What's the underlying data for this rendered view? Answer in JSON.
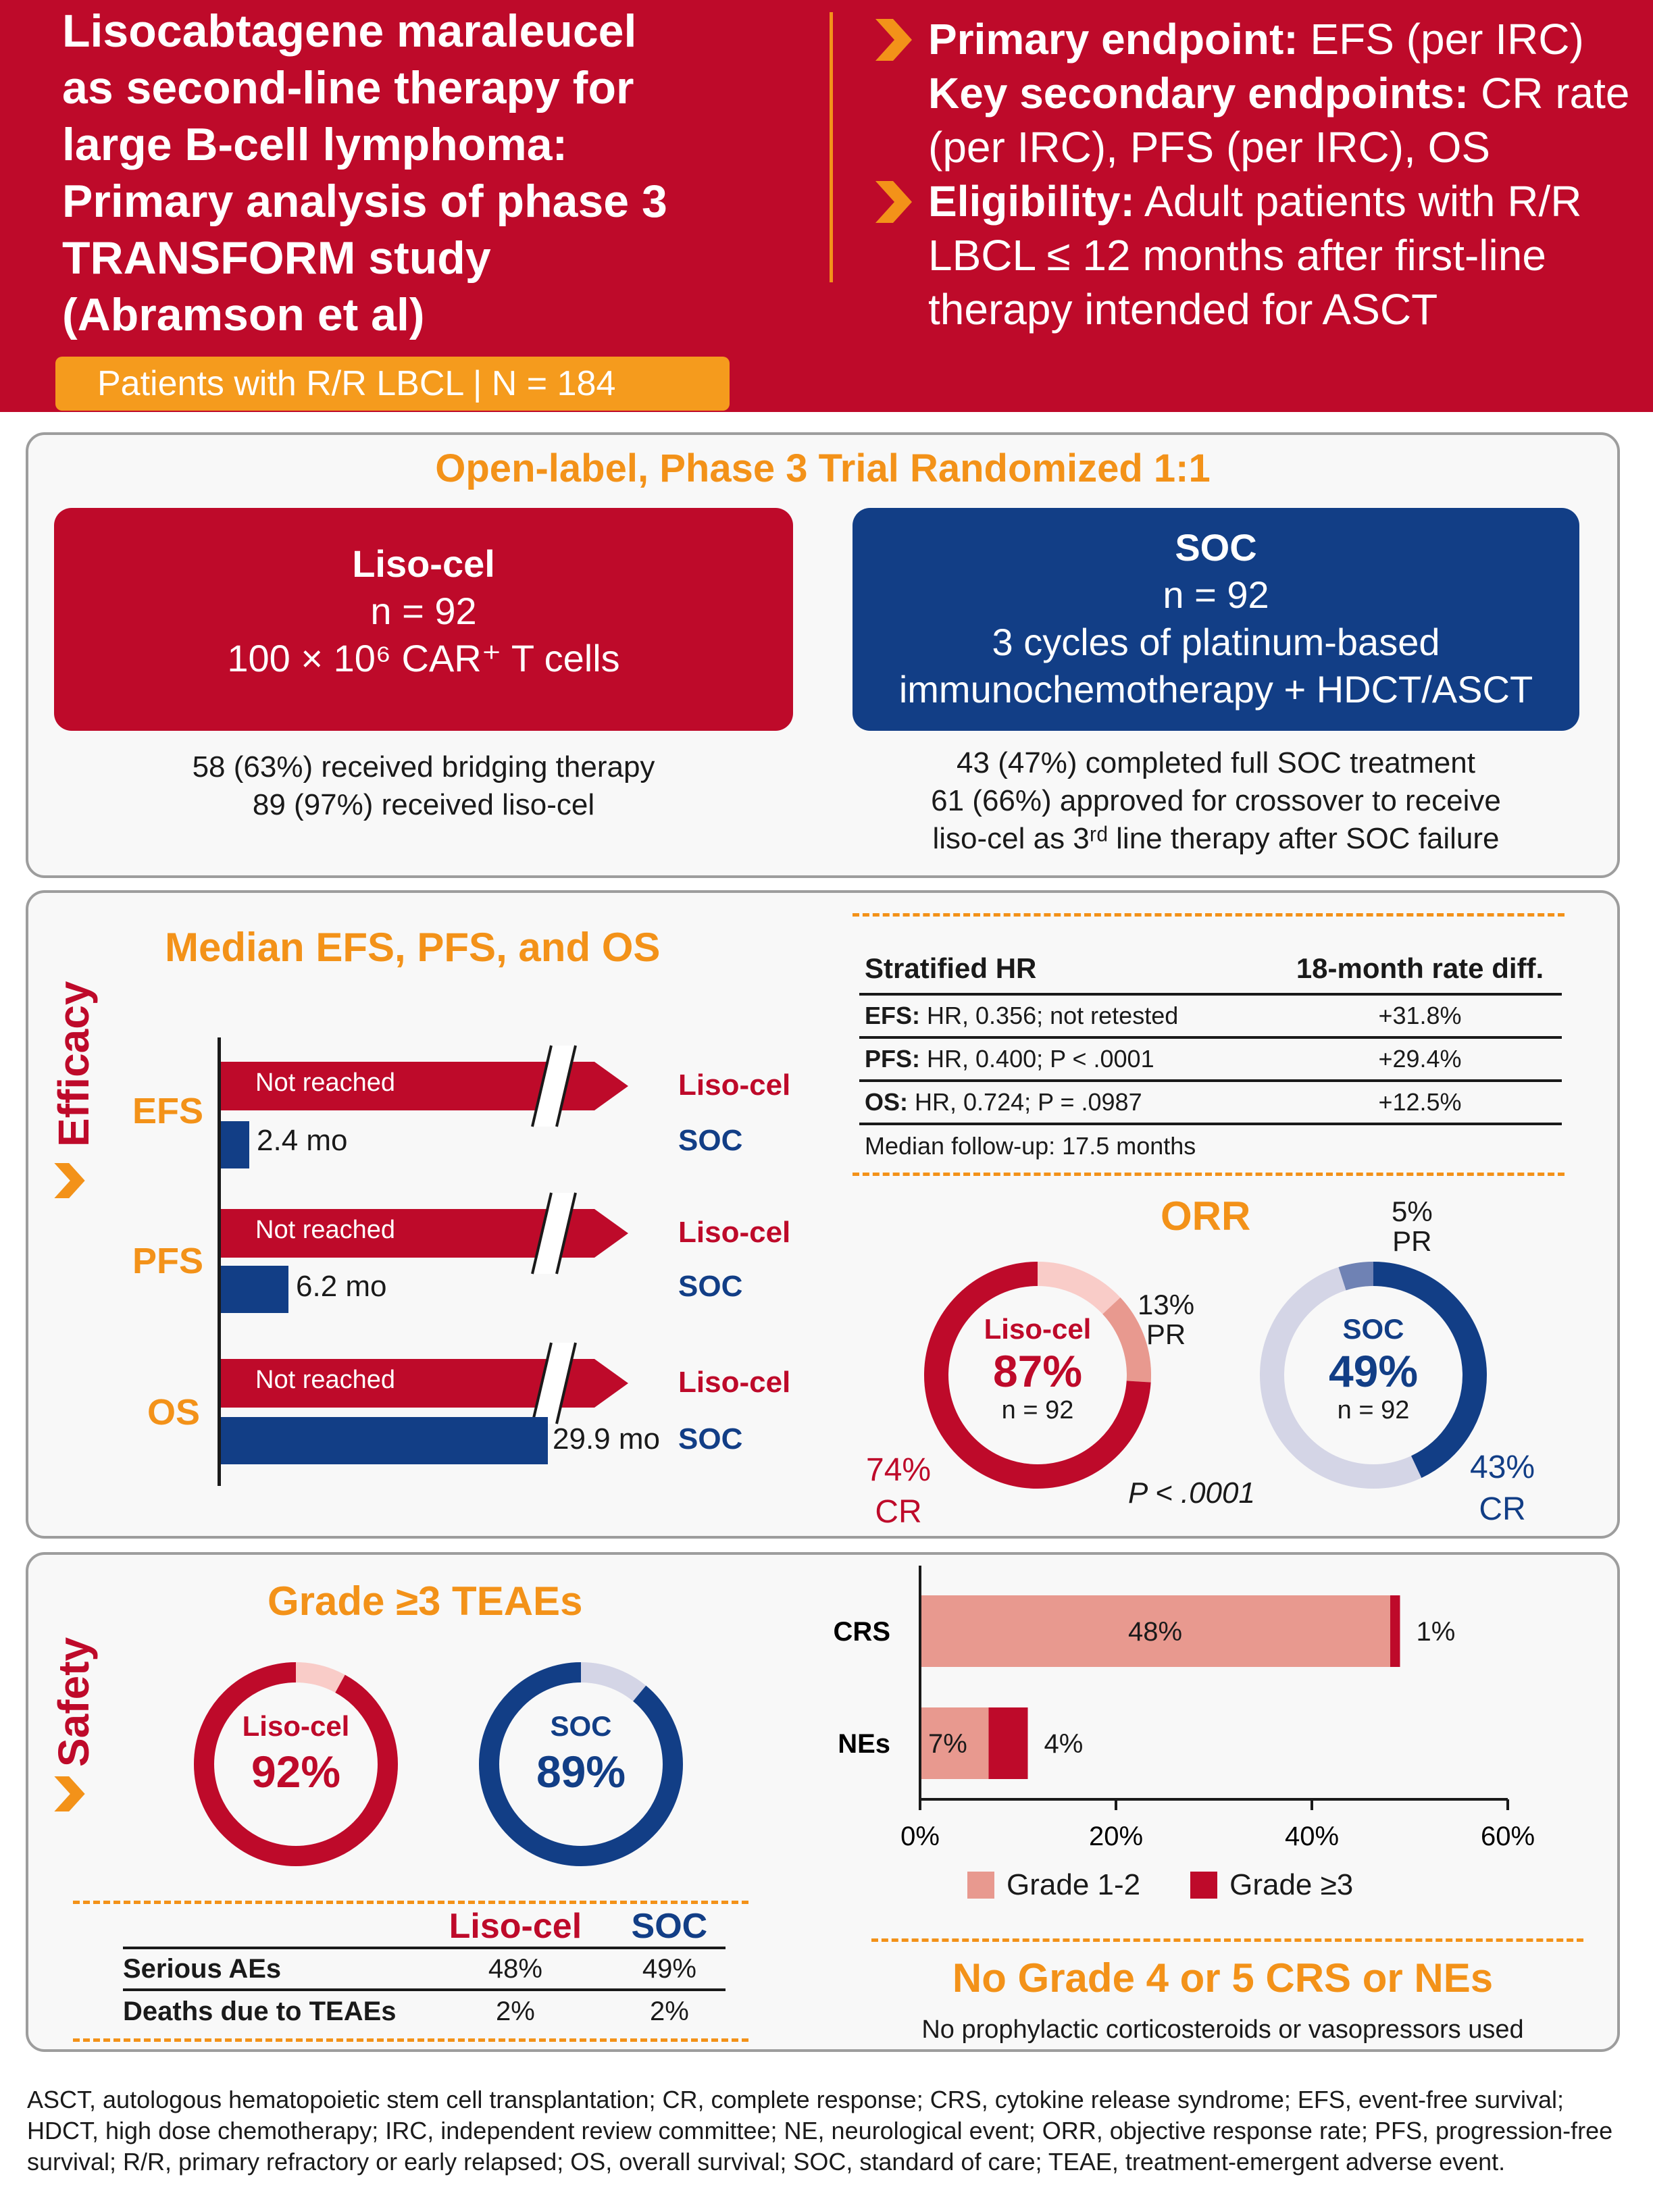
{
  "header": {
    "title": [
      "Lisocabtagene maraleucel",
      "as second-line therapy for",
      "large B-cell lymphoma:",
      "Primary analysis of phase 3",
      "TRANSFORM study",
      "(Abramson et al)"
    ],
    "primary_label": "Primary endpoint:",
    "primary_value": " EFS (per IRC)",
    "secondary_label": "Key secondary endpoints:",
    "secondary_value_1": " CR rate",
    "secondary_value_2": "(per IRC), PFS (per IRC), OS",
    "eligibility_label": "Eligibility:",
    "eligibility_value_1": " Adult patients with R/R",
    "eligibility_value_2": "LBCL ≤ 12 months after first-line",
    "eligibility_value_3": "therapy intended for ASCT",
    "population": "Patients with R/R LBCL | N = 184"
  },
  "design": {
    "title": "Open-label, Phase 3 Trial Randomized 1:1",
    "liso": {
      "name": "Liso-cel",
      "n": "n = 92",
      "dose": "100 × 10⁶ CAR⁺ T cells",
      "notes": [
        "58 (63%) received bridging therapy",
        "89 (97%) received liso-cel"
      ]
    },
    "soc": {
      "name": "SOC",
      "n": "n = 92",
      "desc_1": "3 cycles of platinum-based",
      "desc_2": "immunochemotherapy + HDCT/ASCT",
      "notes": [
        "43 (47%) completed full SOC treatment",
        "61 (66%) approved for crossover to receive",
        "liso-cel as 3ʳᵈ line therapy after SOC failure"
      ]
    }
  },
  "efficacy": {
    "side_label": "Efficacy",
    "chart_title": "Median EFS, PFS, and OS",
    "not_reached": "Not reached",
    "liso_label": "Liso-cel",
    "soc_label": "SOC",
    "rows": [
      {
        "endpoint": "EFS",
        "soc_value": "2.4 mo"
      },
      {
        "endpoint": "PFS",
        "soc_value": "6.2 mo"
      },
      {
        "endpoint": "OS",
        "soc_value": "29.9 mo"
      }
    ],
    "hr_table": {
      "headers": [
        "Stratified HR",
        "18-month rate diff."
      ],
      "rows": [
        {
          "label": "EFS:",
          "text": " HR, 0.356; not retested",
          "diff": "+31.8%"
        },
        {
          "label": "PFS:",
          "text": " HR, 0.400; P < .0001",
          "diff": "+29.4%"
        },
        {
          "label": "OS:",
          "text": " HR, 0.724; P = .0987",
          "diff": "+12.5%"
        }
      ],
      "followup": "Median follow-up: 17.5 months"
    },
    "orr": {
      "title": "ORR",
      "liso": {
        "name": "Liso-cel",
        "value": "87%",
        "n": "n = 92",
        "cr": "74%",
        "cr_label": "CR",
        "pr": "13%",
        "pr_label": "PR",
        "cr_frac": 0.74,
        "pr_frac": 0.13
      },
      "soc": {
        "name": "SOC",
        "value": "49%",
        "n": "n = 92",
        "cr": "43%",
        "cr_label": "CR",
        "pr": "5%",
        "pr_label": "PR",
        "cr_frac": 0.43,
        "pr_frac": 0.05
      },
      "p_value": "P < .0001"
    }
  },
  "safety": {
    "side_label": "Safety",
    "teae_title": "Grade ≥3 TEAEs",
    "liso": {
      "name": "Liso-cel",
      "value": "92%",
      "frac": 0.92
    },
    "soc": {
      "name": "SOC",
      "value": "89%",
      "frac": 0.89
    },
    "ae_table": {
      "headers": [
        "",
        "Liso-cel",
        "SOC"
      ],
      "rows": [
        [
          "Serious AEs",
          "48%",
          "49%"
        ],
        [
          "Deaths due to TEAEs",
          "2%",
          "2%"
        ]
      ]
    },
    "no_grade45": "No Grade 4 or 5 CRS or NEs",
    "no_grade45_sub": "No prophylactic corticosteroids or vasopressors used"
  },
  "chart_data": {
    "type": "bar",
    "orientation": "horizontal",
    "stacked": true,
    "categories": [
      "CRS",
      "NEs"
    ],
    "series": [
      {
        "name": "Grade 1-2",
        "values": [
          48,
          7
        ],
        "labels": [
          "48%",
          "7%"
        ],
        "color": "#e8998f"
      },
      {
        "name": "Grade ≥3",
        "values": [
          1,
          4
        ],
        "labels": [
          "1%",
          "4%"
        ],
        "color": "#be0a2a"
      }
    ],
    "xlim": [
      0,
      60
    ],
    "xticks": [
      "0%",
      "20%",
      "40%",
      "60%"
    ],
    "legend": "bottom"
  },
  "footnote": "ASCT, autologous hematopoietic stem cell transplantation; CR, complete response; CRS, cytokine release syndrome; EFS, event-free survival; HDCT, high dose chemotherapy; IRC, independent review committee; NE, neurological event; ORR, objective response rate; PFS, progression-free survival; R/R, primary refractory or early relapsed; OS, overall survival; SOC, standard of care; TEAE, treatment-emergent adverse event.",
  "colors": {
    "red": "#be0a2a",
    "navy": "#123e86",
    "orange": "#f39219",
    "pink": "#e8998f"
  }
}
